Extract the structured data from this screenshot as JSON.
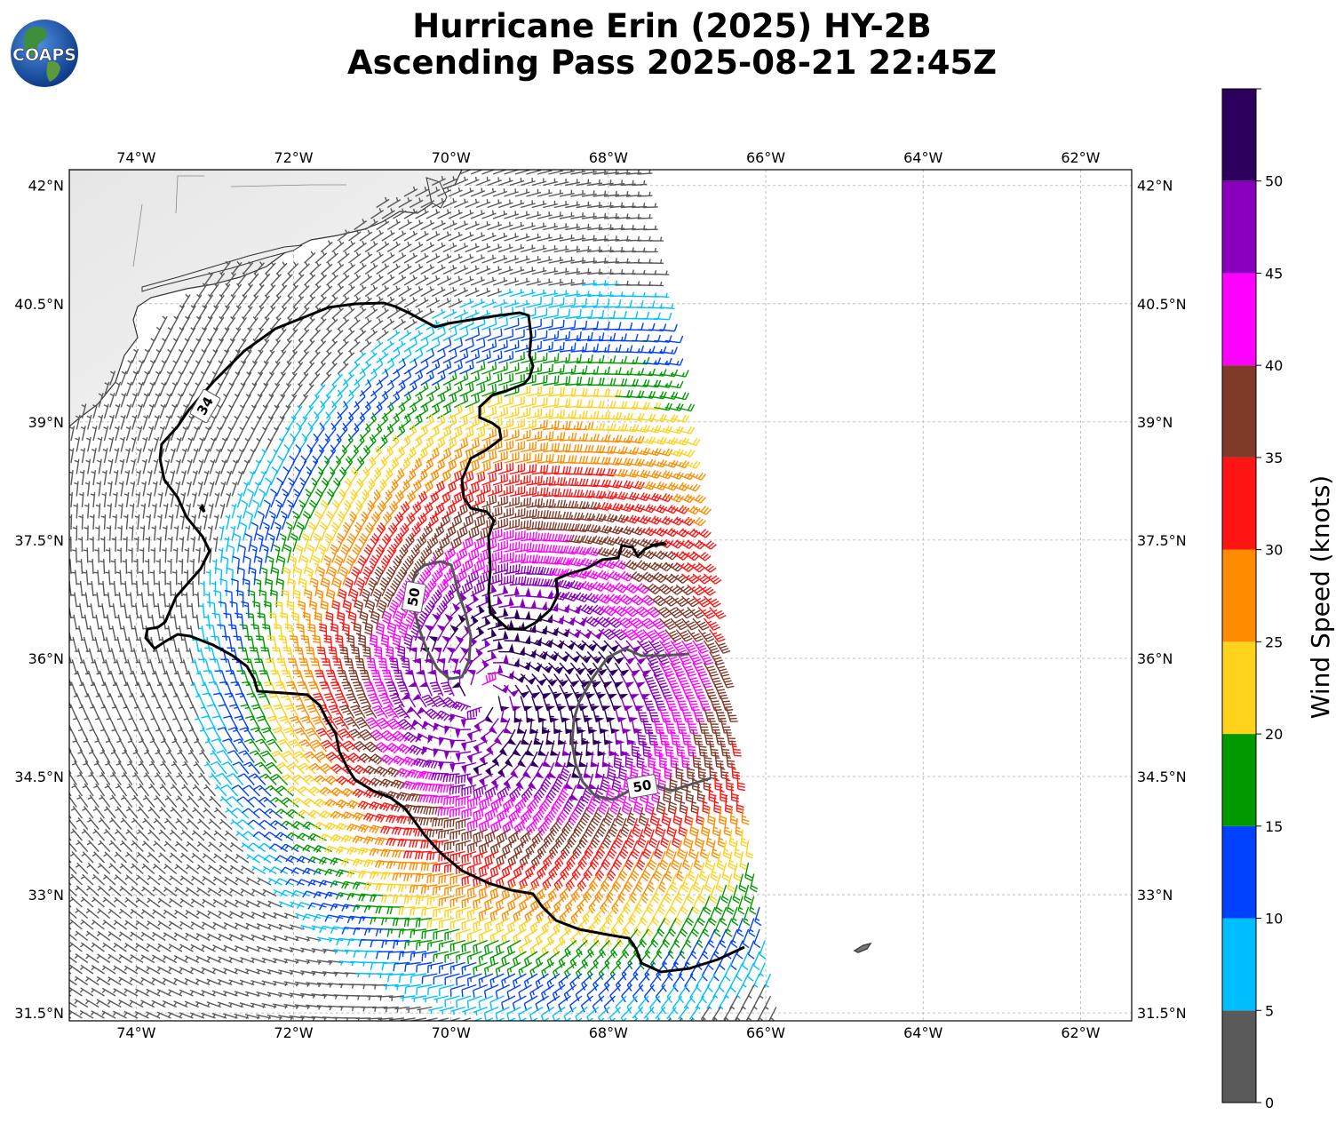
{
  "title_line1": "Hurricane Erin (2025) HY-2B",
  "title_line2": "Ascending Pass 2025-08-21 22:45Z",
  "logo_text": "COAPS",
  "lon_ticks": [
    "74°W",
    "72°W",
    "70°W",
    "68°W",
    "66°W",
    "64°W",
    "62°W"
  ],
  "lon_values": [
    -74,
    -72,
    -70,
    -68,
    -66,
    -64,
    -62
  ],
  "lat_ticks": [
    "42°N",
    "40.5°N",
    "39°N",
    "37.5°N",
    "36°N",
    "34.5°N",
    "33°N",
    "31.5°N"
  ],
  "lat_values": [
    42,
    40.5,
    39,
    37.5,
    36,
    34.5,
    33,
    31.5
  ],
  "extent": {
    "lon_min": -74.85,
    "lon_max": -61.35,
    "lat_min": 31.4,
    "lat_max": 42.2
  },
  "colorbar": {
    "label": "Wind Speed (knots)",
    "tick_labels": [
      "0",
      "5",
      "10",
      "15",
      "20",
      "25",
      "30",
      "35",
      "40",
      "45",
      "50"
    ],
    "bins": [
      {
        "min": 0,
        "max": 5,
        "color": "#595959"
      },
      {
        "min": 5,
        "max": 10,
        "color": "#00bfff"
      },
      {
        "min": 10,
        "max": 15,
        "color": "#0040ff"
      },
      {
        "min": 15,
        "max": 20,
        "color": "#009900"
      },
      {
        "min": 20,
        "max": 25,
        "color": "#ffd21c"
      },
      {
        "min": 25,
        "max": 30,
        "color": "#ff8c00"
      },
      {
        "min": 30,
        "max": 35,
        "color": "#ff1414"
      },
      {
        "min": 35,
        "max": 40,
        "color": "#7f3a2a"
      },
      {
        "min": 40,
        "max": 45,
        "color": "#ff00ff"
      },
      {
        "min": 45,
        "max": 50,
        "color": "#8800bb"
      },
      {
        "min": 50,
        "max": 55,
        "color": "#2e005e"
      }
    ]
  },
  "contours": [
    {
      "label": "34",
      "color": "#000000"
    },
    {
      "label": "50",
      "color": "#555555"
    },
    {
      "label": "50",
      "color": "#555555"
    }
  ],
  "storm_center": {
    "lon": -69.6,
    "lat": 35.55
  }
}
